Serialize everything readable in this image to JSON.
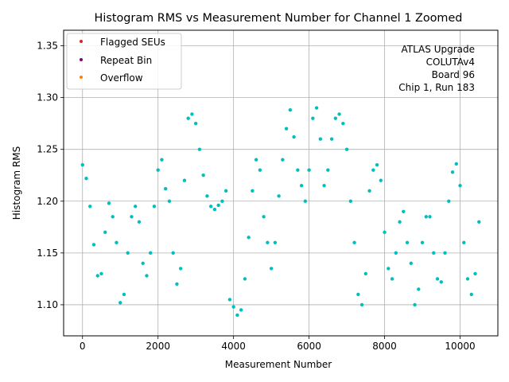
{
  "chart_data": {
    "type": "scatter",
    "title": "Histogram RMS vs Measurement Number for Channel 1 Zoomed",
    "xlabel": "Measurement Number",
    "ylabel": "Histogram RMS",
    "xlim": [
      -500,
      11000
    ],
    "ylim": [
      1.07,
      1.365
    ],
    "x_ticks": [
      0,
      2000,
      4000,
      6000,
      8000,
      10000
    ],
    "y_ticks": [
      1.1,
      1.15,
      1.2,
      1.25,
      1.3,
      1.35
    ],
    "x_tick_labels": [
      "0",
      "2000",
      "4000",
      "6000",
      "8000",
      "10000"
    ],
    "y_tick_labels": [
      "1.10",
      "1.15",
      "1.20",
      "1.25",
      "1.30",
      "1.35"
    ],
    "grid": true,
    "legend_position": "top-left",
    "legend": [
      {
        "name": "Flagged SEUs",
        "color": "#d62728"
      },
      {
        "name": "Repeat Bin",
        "color": "#800080"
      },
      {
        "name": "Overflow",
        "color": "#ff7f0e"
      }
    ],
    "annotation": [
      "ATLAS Upgrade",
      "COLUTAv4",
      "Board 96",
      "Chip 1, Run 183"
    ],
    "point_color": "#00bfbf",
    "series": [
      {
        "points": [
          [
            0,
            1.235
          ],
          [
            100,
            1.222
          ],
          [
            200,
            1.195
          ],
          [
            300,
            1.158
          ],
          [
            400,
            1.128
          ],
          [
            500,
            1.13
          ],
          [
            600,
            1.17
          ],
          [
            700,
            1.198
          ],
          [
            800,
            1.185
          ],
          [
            900,
            1.16
          ],
          [
            1000,
            1.102
          ],
          [
            1100,
            1.11
          ],
          [
            1200,
            1.15
          ],
          [
            1300,
            1.185
          ],
          [
            1400,
            1.195
          ],
          [
            1500,
            1.18
          ],
          [
            1600,
            1.14
          ],
          [
            1700,
            1.128
          ],
          [
            1800,
            1.15
          ],
          [
            1900,
            1.195
          ],
          [
            2000,
            1.23
          ],
          [
            2100,
            1.24
          ],
          [
            2200,
            1.212
          ],
          [
            2300,
            1.2
          ],
          [
            2400,
            1.15
          ],
          [
            2500,
            1.12
          ],
          [
            2600,
            1.135
          ],
          [
            2700,
            1.22
          ],
          [
            2800,
            1.28
          ],
          [
            2900,
            1.284
          ],
          [
            3000,
            1.275
          ],
          [
            3100,
            1.25
          ],
          [
            3200,
            1.225
          ],
          [
            3300,
            1.205
          ],
          [
            3400,
            1.195
          ],
          [
            3500,
            1.192
          ],
          [
            3600,
            1.196
          ],
          [
            3700,
            1.2
          ],
          [
            3800,
            1.21
          ],
          [
            3900,
            1.105
          ],
          [
            4000,
            1.098
          ],
          [
            4100,
            1.09
          ],
          [
            4200,
            1.095
          ],
          [
            4300,
            1.125
          ],
          [
            4400,
            1.165
          ],
          [
            4500,
            1.21
          ],
          [
            4600,
            1.24
          ],
          [
            4700,
            1.23
          ],
          [
            4800,
            1.185
          ],
          [
            4900,
            1.16
          ],
          [
            5000,
            1.135
          ],
          [
            5100,
            1.16
          ],
          [
            5200,
            1.205
          ],
          [
            5300,
            1.24
          ],
          [
            5400,
            1.27
          ],
          [
            5500,
            1.288
          ],
          [
            5600,
            1.262
          ],
          [
            5700,
            1.23
          ],
          [
            5800,
            1.215
          ],
          [
            5900,
            1.2
          ],
          [
            6000,
            1.23
          ],
          [
            6100,
            1.28
          ],
          [
            6200,
            1.29
          ],
          [
            6300,
            1.26
          ],
          [
            6400,
            1.215
          ],
          [
            6500,
            1.23
          ],
          [
            6600,
            1.26
          ],
          [
            6700,
            1.28
          ],
          [
            6800,
            1.284
          ],
          [
            6900,
            1.275
          ],
          [
            7000,
            1.25
          ],
          [
            7100,
            1.2
          ],
          [
            7200,
            1.16
          ],
          [
            7300,
            1.11
          ],
          [
            7400,
            1.1
          ],
          [
            7500,
            1.13
          ],
          [
            7600,
            1.21
          ],
          [
            7700,
            1.23
          ],
          [
            7800,
            1.235
          ],
          [
            7900,
            1.22
          ],
          [
            8000,
            1.17
          ],
          [
            8100,
            1.135
          ],
          [
            8200,
            1.125
          ],
          [
            8300,
            1.15
          ],
          [
            8400,
            1.18
          ],
          [
            8500,
            1.19
          ],
          [
            8600,
            1.16
          ],
          [
            8700,
            1.14
          ],
          [
            8800,
            1.1
          ],
          [
            8900,
            1.115
          ],
          [
            9000,
            1.16
          ],
          [
            9100,
            1.185
          ],
          [
            9200,
            1.185
          ],
          [
            9300,
            1.15
          ],
          [
            9400,
            1.125
          ],
          [
            9500,
            1.122
          ],
          [
            9600,
            1.15
          ],
          [
            9700,
            1.2
          ],
          [
            9800,
            1.228
          ],
          [
            9900,
            1.236
          ],
          [
            10000,
            1.215
          ],
          [
            10100,
            1.16
          ],
          [
            10200,
            1.125
          ],
          [
            10300,
            1.11
          ],
          [
            10400,
            1.13
          ],
          [
            10500,
            1.18
          ]
        ]
      }
    ]
  }
}
